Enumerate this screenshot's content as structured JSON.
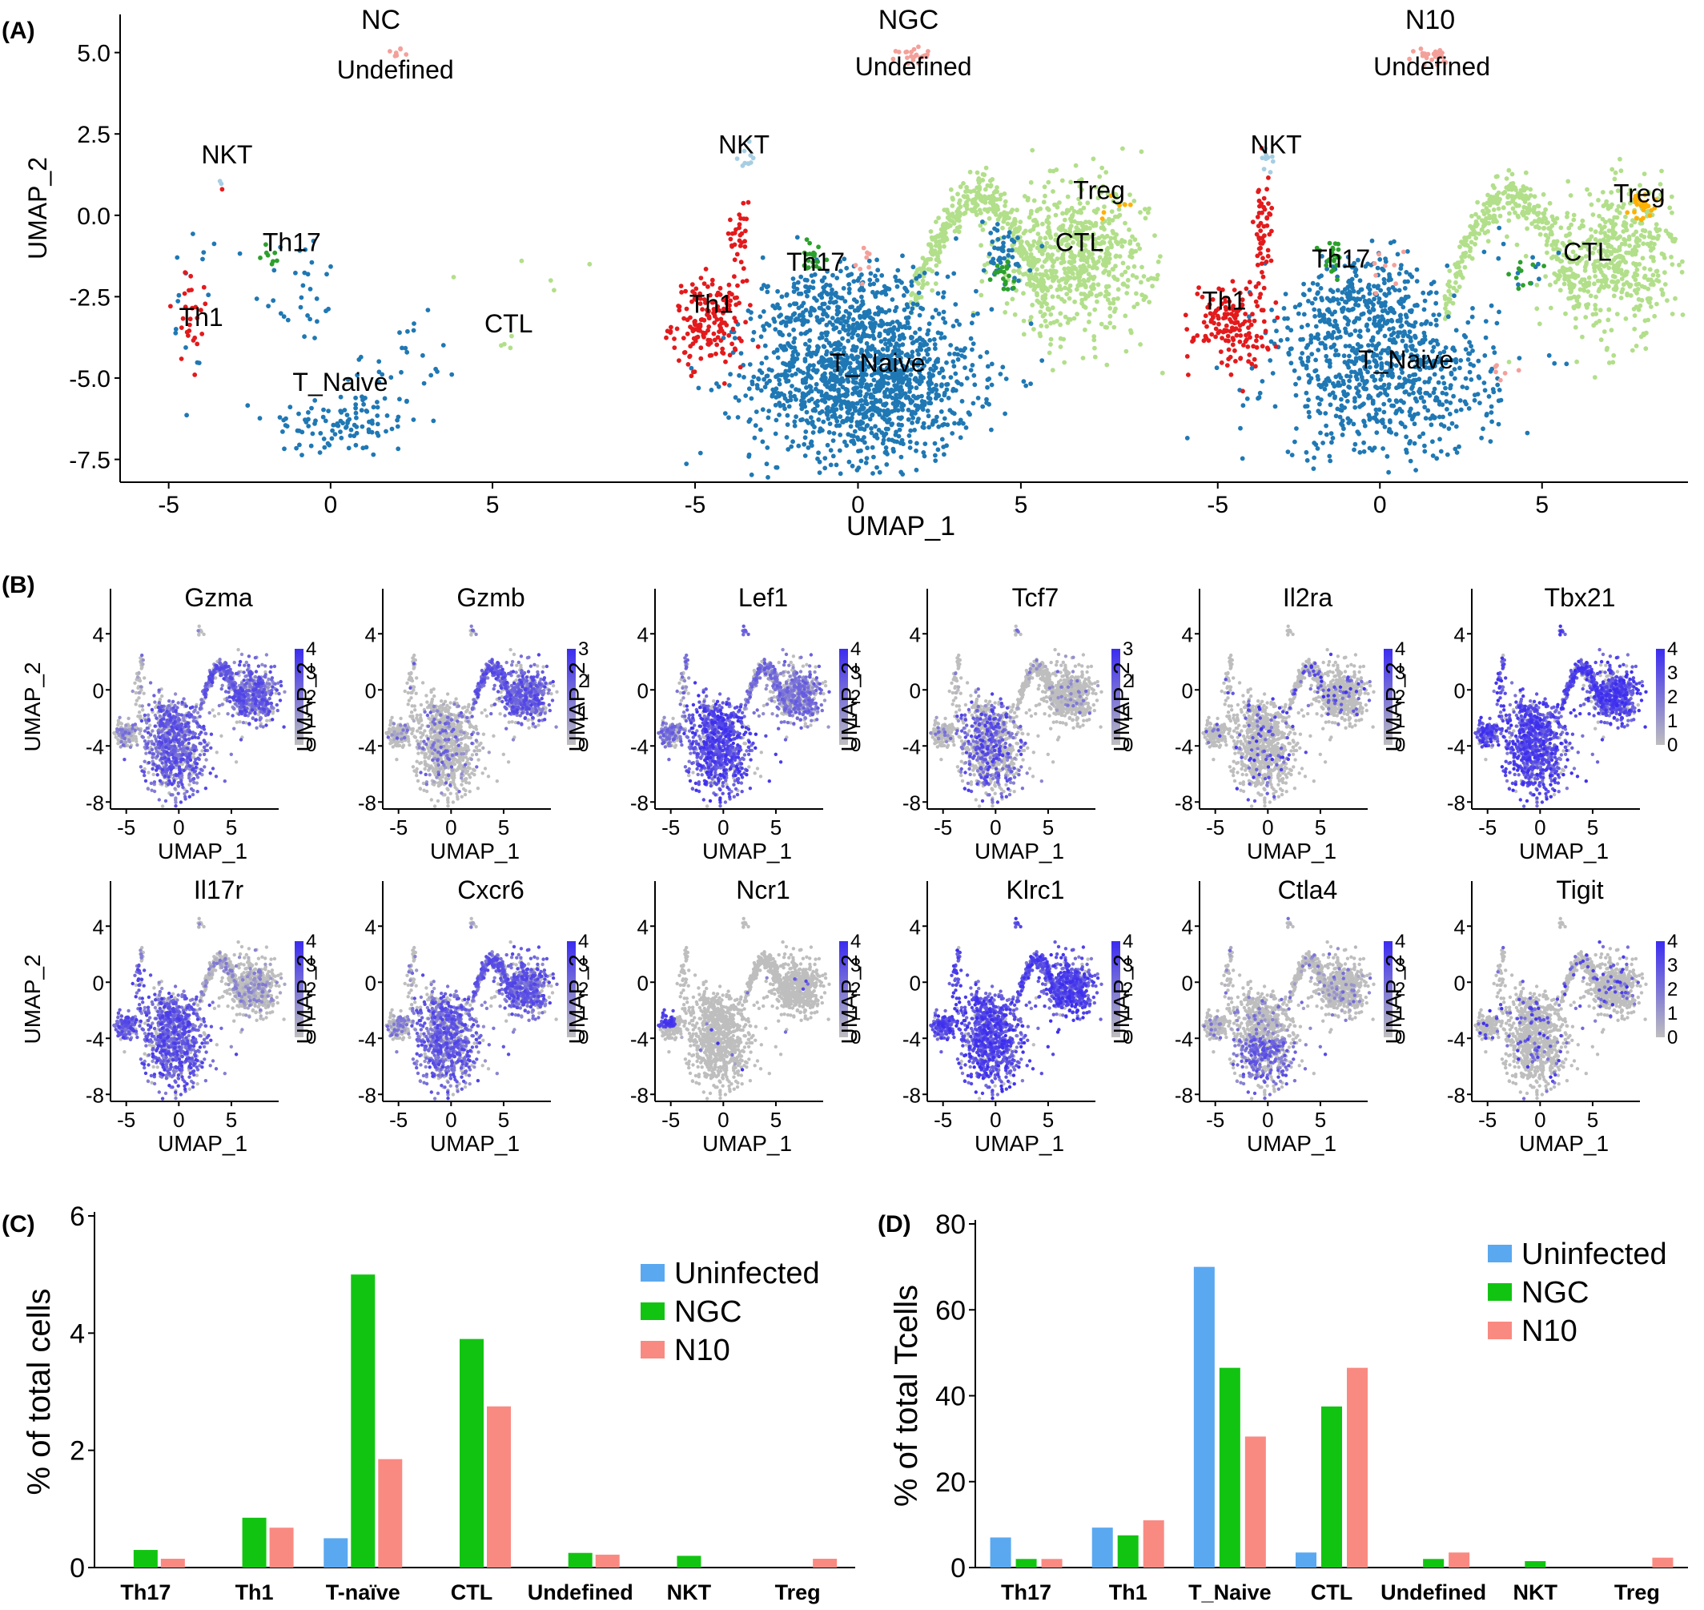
{
  "panel_labels": [
    "(A)",
    "(B)",
    "(C)",
    "(D)"
  ],
  "colors": {
    "Th1": "#e31a1c",
    "Th17": "#2ca02c",
    "T_Naive": "#1f78b4",
    "CTL": "#b2df8a",
    "NKT": "#a6cee3",
    "Treg": "#ffb000",
    "Undefined": "#f4a09a",
    "Uninfected": "#5aa8f0",
    "NGC": "#12c412",
    "N10": "#f98a82",
    "expr_low": "#bebebe",
    "expr_high": "#3b2cf0"
  },
  "chart_data": [
    {
      "type": "scatter",
      "panel": "(A)",
      "facets": [
        "NC",
        "NGC",
        "N10"
      ],
      "xlabel": "UMAP_1",
      "ylabel": "UMAP_2",
      "xticks": [
        -5,
        0,
        5
      ],
      "yticks": [
        "5.0",
        "2.5",
        "0.0",
        "-2.5",
        "-5.0",
        "-7.5"
      ],
      "xlim": [
        -6.5,
        9.5
      ],
      "ylim": [
        -8.2,
        6.0
      ],
      "cluster_labels": [
        {
          "facet": "NC",
          "labels": [
            {
              "text": "Undefined",
              "x": 2.0,
              "y": 4.2
            },
            {
              "text": "NKT",
              "x": -3.2,
              "y": 1.6
            },
            {
              "text": "Th17",
              "x": -1.2,
              "y": -1.1
            },
            {
              "text": "Th1",
              "x": -4.0,
              "y": -3.4
            },
            {
              "text": "CTL",
              "x": 5.5,
              "y": -3.6
            },
            {
              "text": "T_Naive",
              "x": 0.3,
              "y": -5.4
            }
          ]
        },
        {
          "facet": "NGC",
          "labels": [
            {
              "text": "Undefined",
              "x": 1.7,
              "y": 4.3
            },
            {
              "text": "NKT",
              "x": -3.5,
              "y": 1.9
            },
            {
              "text": "Th17",
              "x": -1.3,
              "y": -1.7
            },
            {
              "text": "Th1",
              "x": -4.5,
              "y": -3.0
            },
            {
              "text": "T_Naive",
              "x": 0.6,
              "y": -4.8
            },
            {
              "text": "Treg",
              "x": 7.4,
              "y": 0.5
            },
            {
              "text": "CTL",
              "x": 6.8,
              "y": -1.1
            }
          ]
        },
        {
          "facet": "N10",
          "labels": [
            {
              "text": "Undefined",
              "x": 1.6,
              "y": 4.3
            },
            {
              "text": "NKT",
              "x": -3.2,
              "y": 1.9
            },
            {
              "text": "Th17",
              "x": -1.2,
              "y": -1.6
            },
            {
              "text": "Th1",
              "x": -4.8,
              "y": -2.9
            },
            {
              "text": "T_Naive",
              "x": 0.8,
              "y": -4.7
            },
            {
              "text": "Treg",
              "x": 8.0,
              "y": 0.4
            },
            {
              "text": "CTL",
              "x": 6.4,
              "y": -1.4
            }
          ]
        }
      ]
    },
    {
      "type": "scatter",
      "panel": "(B)",
      "xlabel": "UMAP_1",
      "ylabel": "UMAP_2",
      "xticks": [
        -5,
        0,
        5
      ],
      "yticks": [
        4,
        0,
        -4,
        -8
      ],
      "xlim": [
        -6.5,
        9.5
      ],
      "ylim": [
        -8.5,
        5.5
      ],
      "genes": [
        {
          "name": "Gzma",
          "max": 4,
          "levels": [
            "4",
            "3",
            "2",
            "1",
            "0"
          ],
          "pattern": "ctl_naive"
        },
        {
          "name": "Gzmb",
          "max": 3,
          "levels": [
            "3",
            "2",
            "1",
            "0"
          ],
          "pattern": "ctl"
        },
        {
          "name": "Lef1",
          "max": 4,
          "levels": [
            "4",
            "3",
            "2",
            "1",
            "0"
          ],
          "pattern": "naive_ctl"
        },
        {
          "name": "Tcf7",
          "max": 3,
          "levels": [
            "3",
            "2",
            "1",
            "0"
          ],
          "pattern": "naive_sparse"
        },
        {
          "name": "Il2ra",
          "max": 4,
          "levels": [
            "4",
            "3",
            "2",
            "1",
            "0"
          ],
          "pattern": "sparse"
        },
        {
          "name": "Tbx21",
          "max": 4,
          "levels": [
            "4",
            "3",
            "2",
            "1",
            "0"
          ],
          "pattern": "all_high"
        },
        {
          "name": "Il17r",
          "max": 4,
          "levels": [
            "4",
            "3",
            "2",
            "1",
            "0"
          ],
          "pattern": "naive"
        },
        {
          "name": "Cxcr6",
          "max": 4,
          "levels": [
            "4",
            "3",
            "2",
            "1",
            "0"
          ],
          "pattern": "ctl_naive"
        },
        {
          "name": "Ncr1",
          "max": 4,
          "levels": [
            "4",
            "3",
            "2",
            "1",
            "0"
          ],
          "pattern": "th1_only"
        },
        {
          "name": "Klrc1",
          "max": 4,
          "levels": [
            "4",
            "3",
            "2",
            "1",
            "0"
          ],
          "pattern": "all_high"
        },
        {
          "name": "Ctla4",
          "max": 4,
          "levels": [
            "4",
            "3",
            "2",
            "1",
            "0"
          ],
          "pattern": "naive_low"
        },
        {
          "name": "Tigit",
          "max": 4,
          "levels": [
            "4",
            "3",
            "2",
            "1",
            "0"
          ],
          "pattern": "sparse"
        }
      ]
    },
    {
      "type": "bar",
      "panel": "(C)",
      "categories": [
        "Th17",
        "Th1",
        "T-naïve",
        "CTL",
        "Undefined",
        "NKT",
        "Treg"
      ],
      "series": [
        {
          "name": "Uninfected",
          "values": [
            0,
            0,
            0.5,
            0,
            0,
            0,
            0
          ]
        },
        {
          "name": "NGC",
          "values": [
            0.3,
            0.85,
            5.0,
            3.9,
            0.25,
            0.2,
            0
          ]
        },
        {
          "name": "N10",
          "values": [
            0.15,
            0.68,
            1.85,
            2.75,
            0.22,
            0,
            0.15
          ]
        }
      ],
      "ylabel": "% of total cells",
      "ylim": [
        0,
        6
      ],
      "yticks": [
        "0",
        "2",
        "4",
        "6"
      ],
      "legend_position": "top-right"
    },
    {
      "type": "bar",
      "panel": "(D)",
      "categories": [
        "Th17",
        "Th1",
        "T_Naive",
        "CTL",
        "Undefined",
        "NKT",
        "Treg"
      ],
      "series": [
        {
          "name": "Uninfected",
          "values": [
            7,
            9.3,
            70,
            3.5,
            0,
            0,
            0
          ]
        },
        {
          "name": "NGC",
          "values": [
            2,
            7.5,
            46.5,
            37.5,
            2,
            1.5,
            0
          ]
        },
        {
          "name": "N10",
          "values": [
            2,
            11,
            30.5,
            46.5,
            3.5,
            0,
            2.3
          ]
        }
      ],
      "ylabel": "% of total Tcells",
      "ylim": [
        0,
        80
      ],
      "yticks": [
        "0",
        "20",
        "40",
        "60",
        "80"
      ],
      "legend_position": "top-right"
    }
  ]
}
